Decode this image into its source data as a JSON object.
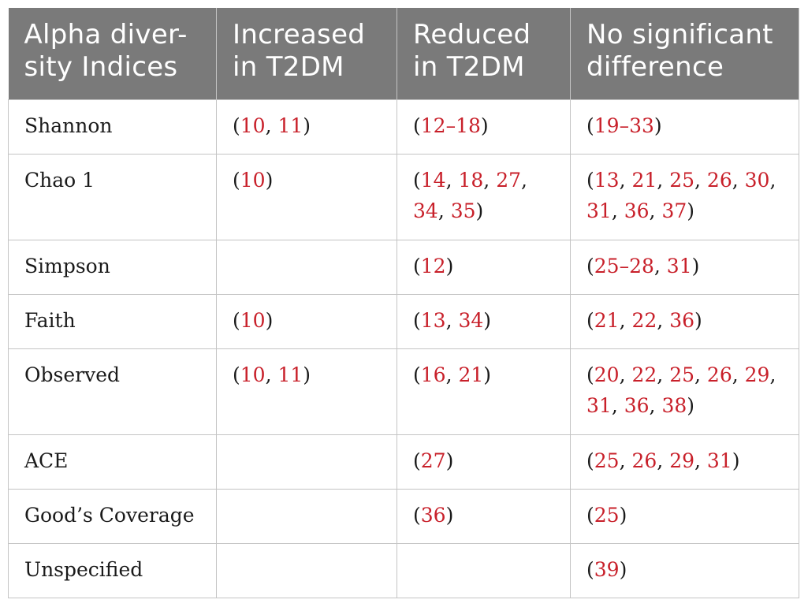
{
  "table": {
    "headers": [
      "Alpha diver-\nsity Indices",
      "Increased\nin T2DM",
      "Reduced\nin T2DM",
      "No significant\ndifference"
    ],
    "header_lines": [
      [
        "Alpha diver-",
        "sity Indices"
      ],
      [
        "Increased",
        "in T2DM"
      ],
      [
        "Reduced",
        "in T2DM"
      ],
      [
        "No significant",
        "difference"
      ]
    ],
    "rows": [
      {
        "index": "Shannon",
        "increased": [
          [
            "(",
            "10",
            ", ",
            "11",
            ")"
          ]
        ],
        "reduced": [
          [
            "(",
            "12–18",
            ")"
          ]
        ],
        "none": [
          [
            "(",
            "19–33",
            ")"
          ]
        ]
      },
      {
        "index": "Chao 1",
        "increased": [
          [
            "(",
            "10",
            ")"
          ]
        ],
        "reduced": [
          [
            "(",
            "14",
            ", ",
            "18",
            ", ",
            "27",
            ","
          ],
          [
            "34",
            ", ",
            "35",
            ")"
          ]
        ],
        "none": [
          [
            "(",
            "13",
            ", ",
            "21",
            ", ",
            "25",
            ", ",
            "26",
            ", ",
            "30",
            ","
          ],
          [
            "31",
            ", ",
            "36",
            ", ",
            "37",
            ")"
          ]
        ]
      },
      {
        "index": "Simpson",
        "increased": [],
        "reduced": [
          [
            "(",
            "12",
            ")"
          ]
        ],
        "none": [
          [
            "(",
            "25–28",
            ", ",
            "31",
            ")"
          ]
        ]
      },
      {
        "index": "Faith",
        "increased": [
          [
            "(",
            "10",
            ")"
          ]
        ],
        "reduced": [
          [
            "(",
            "13",
            ", ",
            "34",
            ")"
          ]
        ],
        "none": [
          [
            "(",
            "21",
            ", ",
            "22",
            ", ",
            "36",
            ")"
          ]
        ]
      },
      {
        "index": "Observed",
        "increased": [
          [
            "(",
            "10",
            ", ",
            "11",
            ")"
          ]
        ],
        "reduced": [
          [
            "(",
            "16",
            ", ",
            "21",
            ")"
          ]
        ],
        "none": [
          [
            "(",
            "20",
            ", ",
            "22",
            ", ",
            "25",
            ", ",
            "26",
            ", ",
            "29",
            ","
          ],
          [
            "31",
            ", ",
            "36",
            ", ",
            "38",
            ")"
          ]
        ]
      },
      {
        "index": "ACE",
        "increased": [],
        "reduced": [
          [
            "(",
            "27",
            ")"
          ]
        ],
        "none": [
          [
            "(",
            "25",
            ", ",
            "26",
            ", ",
            "29",
            ", ",
            "31",
            ")"
          ]
        ]
      },
      {
        "index": "Good’s Coverage",
        "increased": [],
        "reduced": [
          [
            "(",
            "36",
            ")"
          ]
        ],
        "none": [
          [
            "(",
            "25",
            ")"
          ]
        ]
      },
      {
        "index": "Unspecified",
        "increased": [],
        "reduced": [],
        "none": [
          [
            "(",
            "39",
            ")"
          ]
        ]
      }
    ]
  },
  "colors": {
    "header_bg": "#7a7a7a",
    "header_text": "#ffffff",
    "reference_link": "#c8202a",
    "body_text": "#1a1a1a",
    "grid_line": "#c4c4c4"
  }
}
